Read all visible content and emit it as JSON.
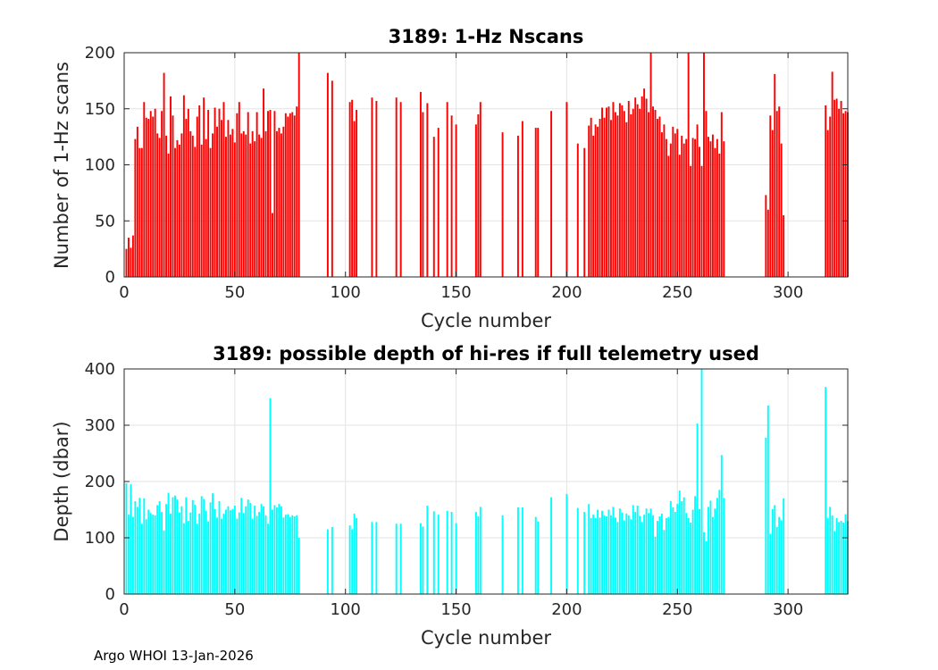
{
  "chart_data": [
    {
      "type": "bar",
      "title": "3189: 1-Hz Nscans",
      "xlabel": "Cycle number",
      "ylabel": "Number of 1-Hz scans",
      "xlim": [
        0,
        327
      ],
      "ylim": [
        0,
        200
      ],
      "xticks": [
        0,
        50,
        100,
        150,
        200,
        250,
        300
      ],
      "yticks": [
        0,
        50,
        100,
        150,
        200
      ],
      "grid": true,
      "color": "#ff0000",
      "series": [
        {
          "name": "Nscans",
          "x": [
            1,
            2,
            3,
            4,
            5,
            6,
            7,
            8,
            9,
            10,
            11,
            12,
            13,
            14,
            15,
            16,
            17,
            18,
            19,
            20,
            21,
            22,
            23,
            24,
            25,
            26,
            27,
            28,
            29,
            30,
            31,
            32,
            33,
            34,
            35,
            36,
            37,
            38,
            39,
            40,
            41,
            42,
            43,
            44,
            45,
            46,
            47,
            48,
            49,
            50,
            51,
            52,
            53,
            54,
            55,
            56,
            57,
            58,
            59,
            60,
            61,
            62,
            63,
            64,
            65,
            66,
            67,
            68,
            69,
            70,
            71,
            72,
            73,
            74,
            75,
            76,
            77,
            78,
            79,
            92,
            94,
            102,
            103,
            104,
            105,
            112,
            114,
            123,
            125,
            134,
            135,
            137,
            140,
            142,
            146,
            148,
            150,
            159,
            160,
            161,
            171,
            178,
            180,
            186,
            187,
            193,
            200,
            205,
            208,
            210,
            211,
            212,
            213,
            214,
            215,
            216,
            217,
            218,
            219,
            220,
            221,
            222,
            223,
            224,
            225,
            226,
            227,
            228,
            229,
            230,
            231,
            232,
            233,
            234,
            235,
            236,
            237,
            238,
            239,
            240,
            241,
            242,
            243,
            244,
            245,
            246,
            247,
            248,
            249,
            250,
            251,
            252,
            253,
            254,
            255,
            256,
            257,
            258,
            259,
            260,
            261,
            262,
            263,
            264,
            265,
            266,
            267,
            268,
            269,
            270,
            271,
            290,
            291,
            292,
            293,
            294,
            295,
            296,
            297,
            298,
            317,
            318,
            319,
            320,
            321,
            322,
            323,
            324,
            325,
            326,
            327
          ],
          "values": [
            25,
            35,
            26,
            37,
            123,
            134,
            115,
            115,
            156,
            142,
            141,
            148,
            143,
            150,
            128,
            124,
            148,
            182,
            126,
            110,
            161,
            144,
            115,
            122,
            118,
            128,
            162,
            141,
            150,
            130,
            126,
            116,
            143,
            153,
            118,
            160,
            123,
            149,
            115,
            128,
            151,
            134,
            150,
            140,
            156,
            125,
            140,
            127,
            132,
            120,
            146,
            156,
            128,
            130,
            127,
            147,
            119,
            130,
            121,
            147,
            127,
            124,
            168,
            130,
            148,
            149,
            57,
            148,
            130,
            133,
            128,
            134,
            146,
            143,
            146,
            147,
            144,
            152,
            200,
            182,
            175,
            156,
            158,
            139,
            149,
            160,
            157,
            160,
            156,
            165,
            147,
            155,
            125,
            133,
            156,
            144,
            136,
            136,
            145,
            156,
            129,
            126,
            139,
            133,
            133,
            148,
            156,
            119,
            115,
            135,
            142,
            126,
            136,
            134,
            141,
            151,
            142,
            151,
            152,
            140,
            156,
            147,
            144,
            155,
            153,
            148,
            138,
            157,
            145,
            150,
            160,
            154,
            150,
            161,
            168,
            159,
            147,
            200,
            152,
            149,
            141,
            143,
            129,
            136,
            123,
            108,
            119,
            134,
            128,
            132,
            109,
            126,
            119,
            123,
            202,
            99,
            124,
            123,
            136,
            116,
            99,
            200,
            148,
            125,
            121,
            127,
            115,
            123,
            110,
            147,
            121,
            73,
            60,
            144,
            131,
            181,
            148,
            152,
            119,
            55,
            153,
            131,
            143,
            183,
            158,
            159,
            150,
            157,
            146,
            148,
            147
          ]
        }
      ]
    },
    {
      "type": "bar",
      "title": "3189: possible depth of hi-res if full telemetry used",
      "xlabel": "Cycle number",
      "ylabel": "Depth (dbar)",
      "xlim": [
        0,
        327
      ],
      "ylim": [
        0,
        400
      ],
      "xticks": [
        0,
        50,
        100,
        150,
        200,
        250,
        300
      ],
      "yticks": [
        0,
        100,
        200,
        300,
        400
      ],
      "grid": true,
      "color": "#00ffff",
      "series": [
        {
          "name": "Depth",
          "x": [
            1,
            2,
            3,
            4,
            5,
            6,
            7,
            8,
            9,
            10,
            11,
            12,
            13,
            14,
            15,
            16,
            17,
            18,
            19,
            20,
            21,
            22,
            23,
            24,
            25,
            26,
            27,
            28,
            29,
            30,
            31,
            32,
            33,
            34,
            35,
            36,
            37,
            38,
            39,
            40,
            41,
            42,
            43,
            44,
            45,
            46,
            47,
            48,
            49,
            50,
            51,
            52,
            53,
            54,
            55,
            56,
            57,
            58,
            59,
            60,
            61,
            62,
            63,
            64,
            65,
            66,
            67,
            68,
            69,
            70,
            71,
            72,
            73,
            74,
            75,
            76,
            77,
            78,
            79,
            92,
            94,
            102,
            103,
            104,
            105,
            112,
            114,
            123,
            125,
            134,
            135,
            137,
            140,
            142,
            146,
            148,
            150,
            159,
            160,
            161,
            171,
            178,
            180,
            186,
            187,
            193,
            200,
            205,
            208,
            210,
            211,
            212,
            213,
            214,
            215,
            216,
            217,
            218,
            219,
            220,
            221,
            222,
            223,
            224,
            225,
            226,
            227,
            228,
            229,
            230,
            231,
            232,
            233,
            234,
            235,
            236,
            237,
            238,
            239,
            240,
            241,
            242,
            243,
            244,
            245,
            246,
            247,
            248,
            249,
            250,
            251,
            252,
            253,
            254,
            255,
            256,
            257,
            258,
            259,
            260,
            261,
            262,
            263,
            264,
            265,
            266,
            267,
            268,
            269,
            270,
            271,
            290,
            291,
            292,
            293,
            294,
            295,
            296,
            297,
            298,
            317,
            318,
            319,
            320,
            321,
            322,
            323,
            324,
            325,
            326,
            327
          ],
          "values": [
            197,
            141,
            195,
            137,
            165,
            155,
            171,
            125,
            170,
            133,
            150,
            144,
            141,
            140,
            158,
            165,
            146,
            113,
            160,
            180,
            143,
            172,
            175,
            168,
            145,
            156,
            126,
            172,
            130,
            145,
            167,
            159,
            125,
            143,
            174,
            169,
            148,
            129,
            163,
            179,
            151,
            136,
            165,
            134,
            143,
            150,
            156,
            149,
            151,
            157,
            134,
            145,
            171,
            144,
            156,
            168,
            162,
            134,
            157,
            139,
            146,
            160,
            156,
            140,
            125,
            348,
            150,
            158,
            154,
            160,
            156,
            136,
            141,
            142,
            137,
            140,
            138,
            140,
            100,
            115,
            119,
            122,
            115,
            143,
            135,
            128,
            128,
            125,
            125,
            126,
            120,
            157,
            147,
            141,
            148,
            146,
            126,
            146,
            138,
            155,
            140,
            154,
            154,
            137,
            129,
            172,
            178,
            153,
            146,
            160,
            135,
            141,
            135,
            150,
            136,
            148,
            140,
            138,
            150,
            140,
            155,
            136,
            128,
            152,
            145,
            131,
            143,
            140,
            133,
            158,
            146,
            157,
            139,
            128,
            141,
            152,
            144,
            152,
            140,
            102,
            130,
            138,
            143,
            114,
            135,
            137,
            165,
            154,
            146,
            160,
            184,
            165,
            172,
            144,
            135,
            127,
            150,
            174,
            303,
            151,
            400,
            110,
            94,
            155,
            166,
            137,
            152,
            171,
            185,
            247,
            171,
            278,
            335,
            107,
            151,
            158,
            119,
            137,
            131,
            170,
            368,
            135,
            155,
            140,
            112,
            135,
            128,
            130,
            127,
            142,
            130
          ]
        }
      ]
    }
  ],
  "footer": "Argo WHOI 13-Jan-2026"
}
